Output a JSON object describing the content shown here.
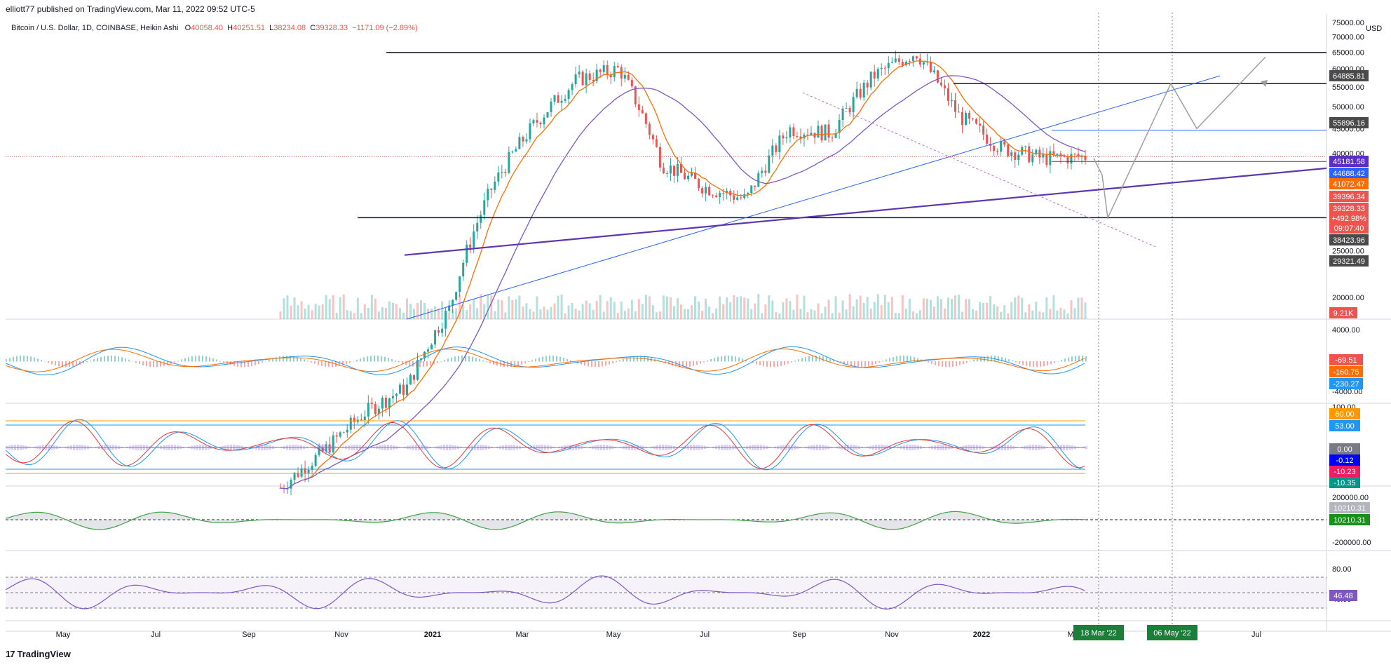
{
  "header": {
    "published": "elliott77 published on TradingView.com, Mar 11, 2022 09:52 UTC-5"
  },
  "legend": {
    "symbol": "Bitcoin / U.S. Dollar, 1D, COINBASE, Heikin Ashi",
    "o_label": "O",
    "o_value": "40058.40",
    "h_label": "H",
    "h_value": "40251.51",
    "l_label": "L",
    "l_value": "38234.08",
    "c_label": "C",
    "c_value": "39328.33",
    "change": "−1171.09 (−2.89%)"
  },
  "footer": {
    "brand": "TradingView"
  },
  "colors": {
    "up": "#26a69a",
    "down": "#ef5350",
    "ema_orange": "#ff6d00",
    "ma_purple": "#7e57c2",
    "trend_blue": "#2962ff",
    "level_black": "#131722"
  },
  "chart_data": {
    "type": "line",
    "price_axis": {
      "unit": "USD",
      "ticks": [
        "75000.00",
        "70000.00",
        "65000.00",
        "60000.00",
        "55000.00",
        "50000.00",
        "45000.00",
        "40000.00",
        "35000.00",
        "30000.00",
        "25000.00",
        "20000.00"
      ],
      "ylim": [
        20000,
        75000
      ]
    },
    "time_axis": {
      "ticks": [
        "May",
        "Jul",
        "Sep",
        "Nov",
        "2021",
        "Mar",
        "May",
        "Jul",
        "Sep",
        "Nov",
        "2022",
        "Mar",
        "Jul"
      ],
      "date_badges": [
        "18 Mar '22",
        "06 May '22"
      ]
    },
    "price_badges": [
      {
        "text": "64885.81",
        "color": "#4a4a4a"
      },
      {
        "text": "55896.16",
        "color": "#4a4a4a"
      },
      {
        "text": "45181.58",
        "color": "#5b2ec7"
      },
      {
        "text": "44688.42",
        "color": "#2962ff"
      },
      {
        "text": "41072.47",
        "color": "#ff6d00"
      },
      {
        "text": "39396.34",
        "color": "#ef5350"
      },
      {
        "text": "39328.33",
        "color": "#ef5350"
      },
      {
        "text": "+492.98%",
        "color": "#ef5350"
      },
      {
        "text": "09:07:40",
        "color": "#ef5350"
      },
      {
        "text": "38423.96",
        "color": "#4a4a4a"
      },
      {
        "text": "29321.49",
        "color": "#4a4a4a"
      }
    ],
    "volume_badge": "9.21K",
    "horizontal_levels": [
      64885.81,
      55896.16,
      29321.49
    ],
    "price_series": {
      "name": "BTCUSD",
      "x": [
        "2020-04",
        "2020-06",
        "2020-08",
        "2020-10",
        "2020-12",
        "2021-01",
        "2021-02",
        "2021-03",
        "2021-04",
        "2021-05",
        "2021-06",
        "2021-07",
        "2021-08",
        "2021-09",
        "2021-10",
        "2021-11",
        "2021-12",
        "2022-01",
        "2022-02",
        "2022-03"
      ],
      "values": [
        8000,
        9500,
        11500,
        13000,
        19000,
        34000,
        46000,
        57000,
        60000,
        38000,
        34000,
        32000,
        45000,
        44000,
        58000,
        65000,
        48000,
        41000,
        39000,
        39328
      ]
    },
    "macd": {
      "ticks": [
        "4000.00",
        "-4000.00"
      ],
      "badges": [
        {
          "text": "-69.51",
          "color": "#ef5350"
        },
        {
          "text": "-160.75",
          "color": "#ff6d00"
        },
        {
          "text": "-230.27",
          "color": "#2196f3"
        }
      ]
    },
    "stoch": {
      "ticks": [
        "100.00"
      ],
      "badges": [
        {
          "text": "60.00",
          "color": "#ff9800"
        },
        {
          "text": "53.00",
          "color": "#2196f3"
        },
        {
          "text": "0.00",
          "color": "#787b86"
        },
        {
          "text": "-0.12",
          "color": "#0000ff"
        },
        {
          "text": "-10.23",
          "color": "#e91e63"
        },
        {
          "text": "-10.35",
          "color": "#009688"
        }
      ]
    },
    "flow": {
      "ticks": [
        "200000.00",
        "-200000.00"
      ],
      "badges": [
        {
          "text": "10210.31",
          "color": "#b2b5be"
        },
        {
          "text": "10210.31",
          "color": "#1b8f1b"
        }
      ]
    },
    "rsi": {
      "ticks": [
        "80.00",
        "40.00"
      ],
      "badges": [
        {
          "text": "46.48",
          "color": "#7e57c2"
        }
      ]
    }
  }
}
